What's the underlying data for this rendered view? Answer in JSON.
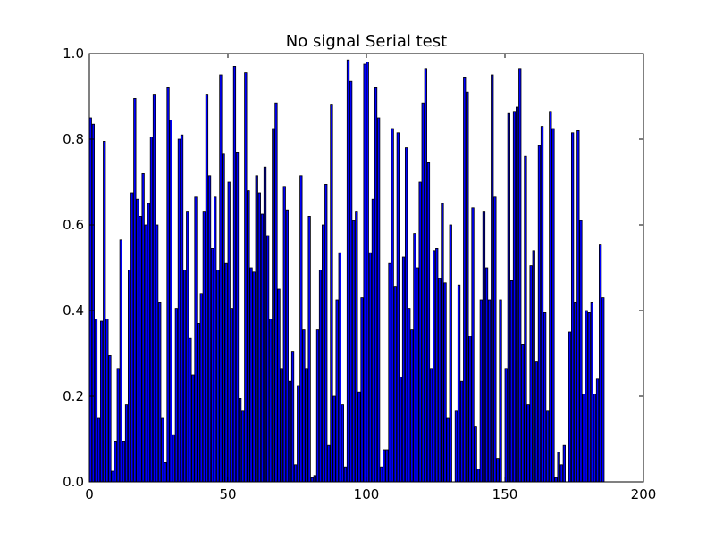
{
  "chart_data": {
    "type": "bar",
    "title": "No signal Serial test",
    "xlabel": "",
    "ylabel": "",
    "xlim": [
      0,
      200
    ],
    "ylim": [
      0.0,
      1.0
    ],
    "xticks": [
      "0",
      "50",
      "100",
      "150",
      "200"
    ],
    "yticks": [
      "0.0",
      "0.2",
      "0.4",
      "0.6",
      "0.8",
      "1.0"
    ],
    "grid": false,
    "bar_color": "#0000ff",
    "bar_edge_color": "#000000",
    "bar_width": 0.8,
    "values": [
      0.85,
      0.835,
      0.38,
      0.15,
      0.375,
      0.795,
      0.38,
      0.295,
      0.025,
      0.095,
      0.265,
      0.565,
      0.095,
      0.18,
      0.495,
      0.675,
      0.895,
      0.66,
      0.62,
      0.72,
      0.6,
      0.65,
      0.805,
      0.905,
      0.6,
      0.42,
      0.15,
      0.045,
      0.92,
      0.845,
      0.11,
      0.405,
      0.8,
      0.81,
      0.495,
      0.63,
      0.335,
      0.25,
      0.665,
      0.37,
      0.44,
      0.63,
      0.905,
      0.715,
      0.545,
      0.665,
      0.495,
      0.95,
      0.765,
      0.51,
      0.7,
      0.405,
      0.97,
      0.77,
      0.195,
      0.165,
      0.955,
      0.68,
      0.5,
      0.49,
      0.715,
      0.675,
      0.625,
      0.735,
      0.575,
      0.38,
      0.825,
      0.885,
      0.45,
      0.265,
      0.69,
      0.635,
      0.235,
      0.305,
      0.04,
      0.225,
      0.715,
      0.355,
      0.265,
      0.62,
      0.01,
      0.015,
      0.355,
      0.495,
      0.6,
      0.695,
      0.085,
      0.88,
      0.2,
      0.425,
      0.535,
      0.18,
      0.035,
      0.985,
      0.935,
      0.61,
      0.63,
      0.21,
      0.43,
      0.975,
      0.98,
      0.535,
      0.66,
      0.92,
      0.85,
      0.035,
      0.075,
      0.075,
      0.51,
      0.825,
      0.455,
      0.815,
      0.245,
      0.525,
      0.78,
      0.405,
      0.355,
      0.58,
      0.5,
      0.7,
      0.885,
      0.965,
      0.745,
      0.265,
      0.54,
      0.545,
      0.475,
      0.65,
      0.465,
      0.15,
      0.6,
      0.0,
      0.165,
      0.46,
      0.235,
      0.945,
      0.91,
      0.34,
      0.64,
      0.13,
      0.03,
      0.425,
      0.63,
      0.5,
      0.425,
      0.95,
      0.665,
      0.055,
      0.425,
      0.0,
      0.265,
      0.86,
      0.47,
      0.865,
      0.875,
      0.965,
      0.32,
      0.76,
      0.18,
      0.505,
      0.54,
      0.28,
      0.785,
      0.83,
      0.395,
      0.165,
      0.865,
      0.825,
      0.01,
      0.07,
      0.04,
      0.085,
      0.0,
      0.35,
      0.815,
      0.42,
      0.82,
      0.61,
      0.205,
      0.4,
      0.395,
      0.42,
      0.205,
      0.24,
      0.555,
      0.43
    ]
  }
}
